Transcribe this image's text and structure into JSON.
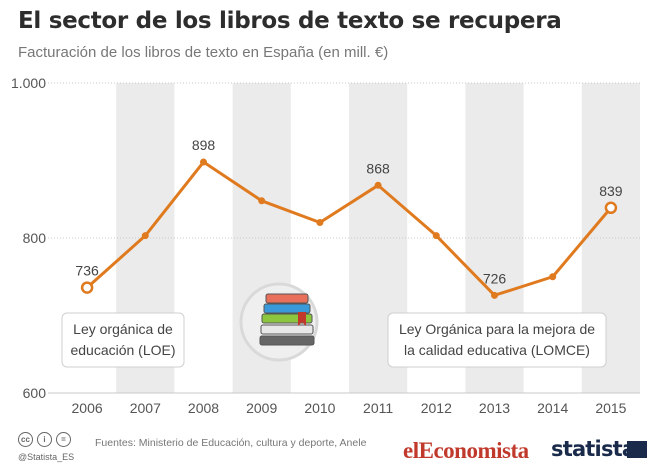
{
  "title": "El sector de los libros de texto se recupera",
  "subtitle": "Facturación de los libros de texto en España (en mill. €)",
  "chart_data": {
    "type": "line",
    "x": [
      "2006",
      "2007",
      "2008",
      "2009",
      "2010",
      "2011",
      "2012",
      "2013",
      "2014",
      "2015"
    ],
    "values": [
      736,
      803,
      898,
      848,
      820,
      868,
      803,
      726,
      750,
      839
    ],
    "data_labels": {
      "2006": "736",
      "2008": "898",
      "2011": "868",
      "2013": "726",
      "2015": "839"
    },
    "ylim": [
      600,
      1000
    ],
    "yticks": [
      600,
      800,
      1000
    ],
    "ytick_labels": [
      "600",
      "800",
      "1.000"
    ],
    "line_color": "#e07a1f",
    "band_color": "#ebebeb",
    "annotations": [
      {
        "text": "Ley orgánica de educación (LOE)",
        "x": "2006"
      },
      {
        "text": "Ley Orgánica para la mejora de la calidad educativa (LOMCE)",
        "x": "2013"
      }
    ]
  },
  "footer": {
    "sources": "Fuentes: Ministerio de Educación, cultura y deporte, Anele",
    "handle": "@Statista_ES",
    "brand1": "elEconomista",
    "brand2": "statista"
  },
  "icons": [
    "cc-icon",
    "by-icon",
    "nd-icon",
    "books-icon"
  ]
}
